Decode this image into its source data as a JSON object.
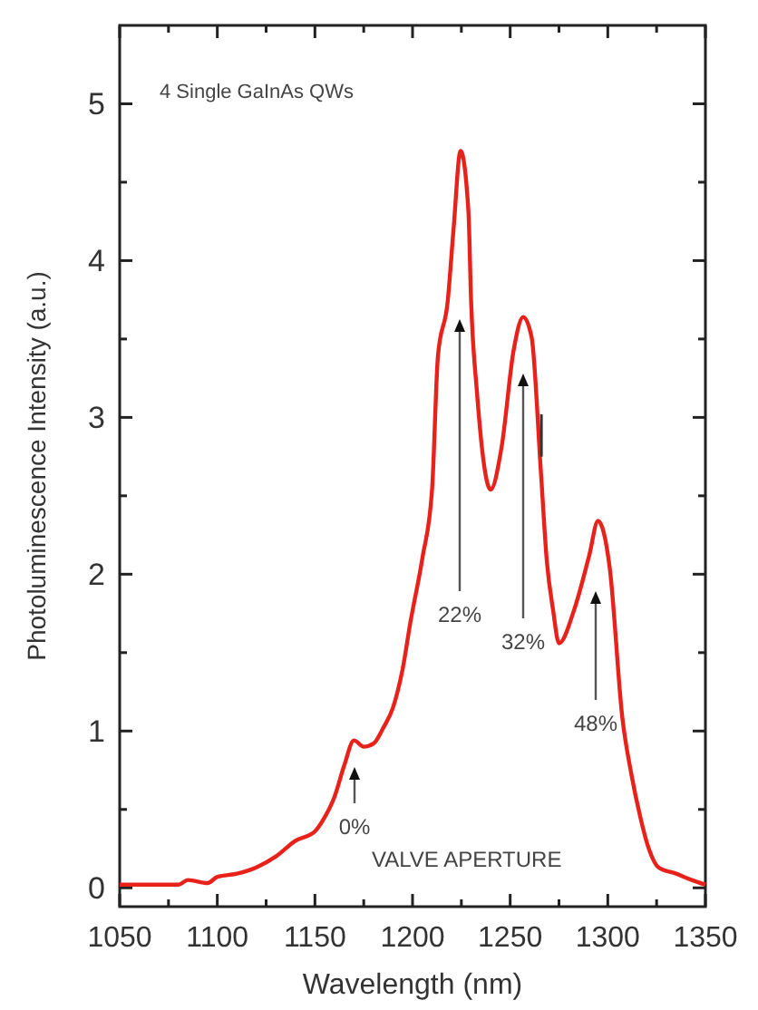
{
  "chart_data": {
    "type": "line",
    "xlabel": "Wavelength (nm)",
    "ylabel": "Photoluminescence Intensity (a.u.)",
    "x": [
      1050,
      1065,
      1080,
      1085,
      1095,
      1100,
      1110,
      1120,
      1130,
      1140,
      1150,
      1155,
      1160,
      1165,
      1170,
      1175,
      1180,
      1185,
      1190,
      1195,
      1199,
      1205,
      1210,
      1213,
      1218,
      1221,
      1224.6,
      1228.6,
      1230,
      1233,
      1240,
      1245.6,
      1251.8,
      1256.7,
      1261,
      1265.7,
      1268.8,
      1272,
      1275,
      1282.7,
      1290.5,
      1295,
      1301,
      1307.5,
      1312,
      1316.5,
      1321,
      1326,
      1335,
      1343,
      1350
    ],
    "series": [
      {
        "color": "#e8211a",
        "values": [
          0.02,
          0.02,
          0.02,
          0.05,
          0.03,
          0.07,
          0.09,
          0.13,
          0.2,
          0.3,
          0.36,
          0.45,
          0.58,
          0.78,
          0.94,
          0.9,
          0.92,
          1.02,
          1.15,
          1.4,
          1.7,
          2.1,
          2.54,
          3.39,
          3.74,
          4.2,
          4.7,
          4.32,
          3.74,
          3.16,
          2.54,
          2.81,
          3.43,
          3.64,
          3.51,
          2.66,
          2.08,
          1.77,
          1.56,
          1.77,
          2.12,
          2.34,
          2.04,
          1.08,
          0.73,
          0.46,
          0.25,
          0.13,
          0.09,
          0.05,
          0.02
        ]
      }
    ],
    "xlim": [
      1050,
      1350
    ],
    "ylim": [
      -0.12,
      5.5
    ],
    "xticks": [
      1050,
      {
        "value": 1075,
        "label": null
      },
      1100,
      {
        "value": 1125,
        "label": null
      },
      1150,
      {
        "value": 1175,
        "label": null
      },
      1200,
      {
        "value": 1225,
        "label": null
      },
      1250,
      {
        "value": 1275,
        "label": null
      },
      1300,
      {
        "value": 1325,
        "label": null
      },
      1350
    ],
    "yticks": [
      0,
      {
        "value": 0.5,
        "label": null
      },
      1,
      {
        "value": 1.5,
        "label": null
      },
      2,
      {
        "value": 2.5,
        "label": null
      },
      3,
      {
        "value": 3.5,
        "label": null
      },
      4,
      {
        "value": 4.5,
        "label": null
      },
      5
    ],
    "grid": false,
    "marker": "none",
    "line_style": "solid",
    "annotations": [
      "4 Single GaInAs QWs",
      "0%",
      "22%",
      "32%",
      "48%",
      "VALVE APERTURE"
    ]
  }
}
